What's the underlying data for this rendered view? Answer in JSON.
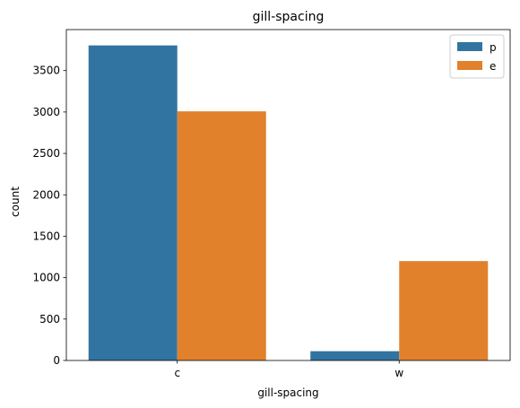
{
  "chart_data": {
    "type": "bar",
    "title": "gill-spacing",
    "xlabel": "gill-spacing",
    "ylabel": "count",
    "categories": [
      "c",
      "w"
    ],
    "series": [
      {
        "name": "p",
        "color": "#3274a1",
        "values": [
          3804,
          112
        ]
      },
      {
        "name": "e",
        "color": "#e1812c",
        "values": [
          3008,
          1200
        ]
      }
    ],
    "ylim": [
      0,
      3995
    ],
    "yticks": [
      0,
      500,
      1000,
      1500,
      2000,
      2500,
      3000,
      3500
    ],
    "grid": false,
    "legend_position": "top-right"
  }
}
